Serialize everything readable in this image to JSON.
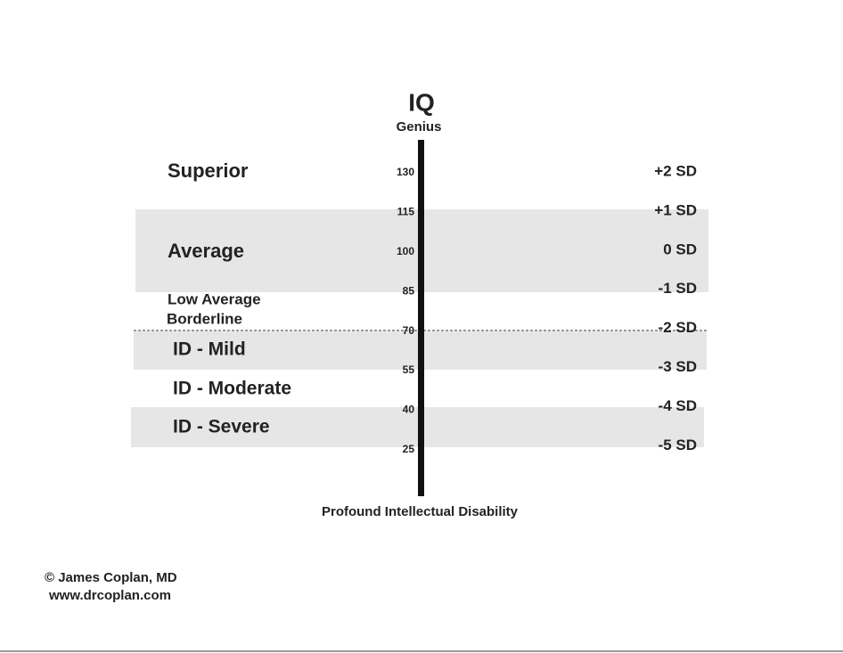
{
  "title": "IQ",
  "top_label": "Genius",
  "bottom_label": "Profound Intellectual Disability",
  "levels": [
    "Superior",
    "Average",
    "Low Average",
    "Borderline",
    "ID - Mild",
    "ID - Moderate",
    "ID - Severe"
  ],
  "iq_ticks": [
    130,
    115,
    100,
    85,
    70,
    55,
    40,
    25
  ],
  "sd_labels": [
    "+2 SD",
    "+1 SD",
    "0 SD",
    "-1 SD",
    "-2 SD",
    "-3 SD",
    "-4 SD",
    "-5 SD"
  ],
  "footer": {
    "author": "© James Coplan, MD",
    "website": "www.drcoplan.com"
  }
}
